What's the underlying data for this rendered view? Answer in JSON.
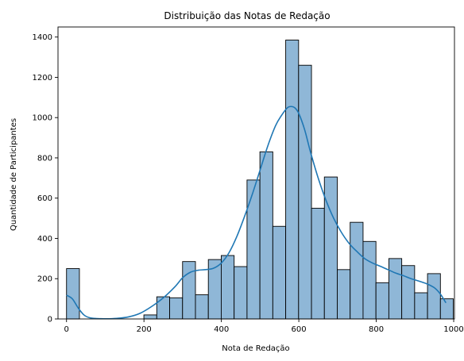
{
  "chart_data": {
    "type": "bar",
    "title": "Distribuição das Notas de Redação",
    "xlabel": "Nota de Redação",
    "ylabel": "Quantidade de Participantes",
    "xlim": [
      -22,
      1002
    ],
    "ylim": [
      0,
      1450
    ],
    "xticks": [
      0,
      200,
      400,
      600,
      800,
      1000
    ],
    "yticks": [
      0,
      200,
      400,
      600,
      800,
      1000,
      1200,
      1400
    ],
    "bin_width": 33.3,
    "bins_start": 0,
    "values": [
      250,
      0,
      0,
      0,
      0,
      0,
      20,
      110,
      105,
      285,
      120,
      295,
      315,
      260,
      690,
      830,
      460,
      1385,
      1260,
      550,
      705,
      245,
      480,
      385,
      180,
      300,
      265,
      130,
      225,
      100
    ],
    "kde": {
      "x": [
        0,
        15,
        30,
        45,
        60,
        80,
        100,
        130,
        160,
        190,
        220,
        250,
        280,
        300,
        320,
        340,
        360,
        380,
        400,
        420,
        440,
        460,
        480,
        500,
        520,
        540,
        555,
        570,
        580,
        590,
        600,
        615,
        630,
        650,
        670,
        690,
        710,
        730,
        750,
        770,
        790,
        810,
        830,
        850,
        870,
        890,
        910,
        930,
        950,
        965,
        980
      ],
      "y": [
        118,
        100,
        55,
        20,
        6,
        2,
        1,
        3,
        10,
        28,
        62,
        105,
        160,
        205,
        232,
        242,
        245,
        252,
        278,
        330,
        410,
        510,
        620,
        740,
        860,
        960,
        1010,
        1048,
        1055,
        1048,
        1020,
        940,
        830,
        700,
        590,
        500,
        430,
        375,
        335,
        300,
        278,
        262,
        245,
        228,
        215,
        200,
        188,
        175,
        155,
        125,
        80
      ]
    },
    "bar_fill": "#8fb7d7",
    "bar_edge": "#000000",
    "line_color": "#1f77b4",
    "grid": false,
    "legend": "none"
  }
}
